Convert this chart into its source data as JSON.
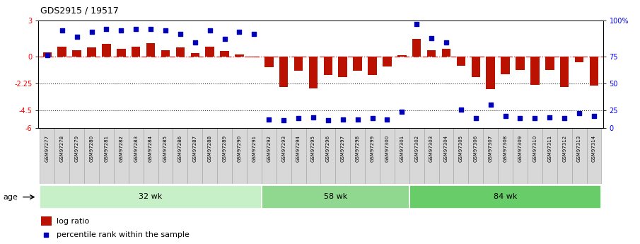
{
  "title": "GDS2915 / 19517",
  "samples": [
    "GSM97277",
    "GSM97278",
    "GSM97279",
    "GSM97280",
    "GSM97281",
    "GSM97282",
    "GSM97283",
    "GSM97284",
    "GSM97285",
    "GSM97286",
    "GSM97287",
    "GSM97288",
    "GSM97289",
    "GSM97290",
    "GSM97291",
    "GSM97292",
    "GSM97293",
    "GSM97294",
    "GSM97295",
    "GSM97296",
    "GSM97297",
    "GSM97298",
    "GSM97299",
    "GSM97300",
    "GSM97301",
    "GSM97302",
    "GSM97303",
    "GSM97304",
    "GSM97305",
    "GSM97306",
    "GSM97307",
    "GSM97308",
    "GSM97309",
    "GSM97310",
    "GSM97311",
    "GSM97312",
    "GSM97313",
    "GSM97314"
  ],
  "log_ratio": [
    0.35,
    0.85,
    0.5,
    0.75,
    1.05,
    0.65,
    0.85,
    1.15,
    0.5,
    0.75,
    0.3,
    0.85,
    0.45,
    0.2,
    -0.05,
    -0.9,
    -2.55,
    -1.2,
    -2.7,
    -1.55,
    -1.75,
    -1.2,
    -1.55,
    -0.85,
    0.1,
    1.45,
    0.5,
    0.65,
    -0.75,
    -1.75,
    -2.75,
    -1.5,
    -1.15,
    -2.35,
    -1.15,
    -2.55,
    -0.5,
    -2.45
  ],
  "percentile": [
    68,
    91,
    85,
    90,
    92,
    91,
    92,
    92,
    91,
    88,
    80,
    91,
    83,
    90,
    88,
    8,
    7,
    9,
    10,
    7,
    8,
    8,
    9,
    8,
    15,
    97,
    84,
    80,
    17,
    9,
    22,
    11,
    9,
    9,
    10,
    9,
    14,
    11
  ],
  "groups": [
    {
      "label": "32 wk",
      "start": 0,
      "end": 14
    },
    {
      "label": "58 wk",
      "start": 15,
      "end": 24
    },
    {
      "label": "84 wk",
      "start": 25,
      "end": 37
    }
  ],
  "group_colors": [
    "#c8f0c8",
    "#90d890",
    "#68cc68"
  ],
  "bar_color": "#bb1100",
  "dot_color": "#0000bb",
  "ylim": [
    -6,
    3
  ],
  "yticks_left": [
    -6,
    -4.5,
    -2.25,
    0,
    3
  ],
  "ytick_left_labels": [
    "-6",
    "-4.5",
    "-2.25",
    "0",
    "3"
  ],
  "yticks_right_labels": [
    "0",
    "25",
    "50",
    "75",
    "100%"
  ],
  "hline_zero_color": "#cc3322",
  "hline_dotted_color": "#333333",
  "legend_log_ratio": "log ratio",
  "legend_percentile": "percentile rank within the sample",
  "age_label": "age",
  "label_bg_color": "#d8d8d8",
  "label_border_color": "#aaaaaa"
}
